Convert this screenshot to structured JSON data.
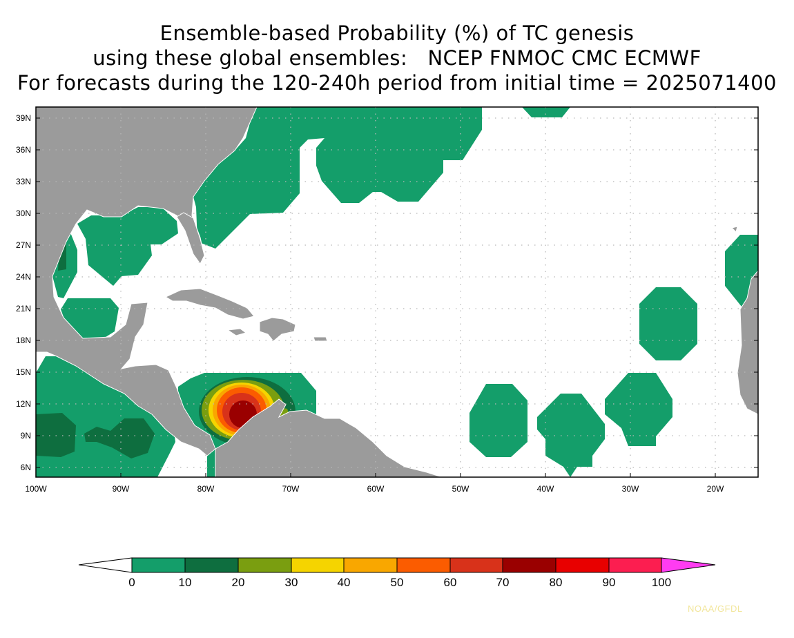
{
  "title": {
    "line1": "Ensemble-based Probability (%) of TC genesis",
    "line2": "using these global ensembles:   NCEP FNMOC CMC ECMWF",
    "line3": "For forecasts during the 120-240h period from initial time = 2025071400"
  },
  "map": {
    "lon_range": [
      -100,
      -15
    ],
    "lat_range": [
      5,
      40
    ],
    "gridlines": "dotted",
    "lat_ticks": [
      "39N",
      "36N",
      "33N",
      "30N",
      "27N",
      "24N",
      "21N",
      "18N",
      "15N",
      "12N",
      "9N",
      "6N"
    ],
    "lon_ticks": [
      "100W",
      "90W",
      "80W",
      "70W",
      "60W",
      "50W",
      "40W",
      "30W",
      "20W"
    ],
    "land_color": "#9b9b9b",
    "ocean_color": "#ffffff",
    "border_color": "#ffffff"
  },
  "colorbar": {
    "labels": [
      "0",
      "10",
      "20",
      "30",
      "40",
      "50",
      "60",
      "70",
      "80",
      "90",
      "100"
    ],
    "colors": [
      "#149e6a",
      "#0e6e3f",
      "#7a9e10",
      "#f5d400",
      "#f9a700",
      "#fb5c00",
      "#d8321a",
      "#9a0000",
      "#e80000",
      "#fc1e50",
      "#ff3cf2"
    ],
    "below_color": "#ffffff",
    "above_color": "#ff3cf2"
  },
  "credit": "NOAA/GFDL"
}
